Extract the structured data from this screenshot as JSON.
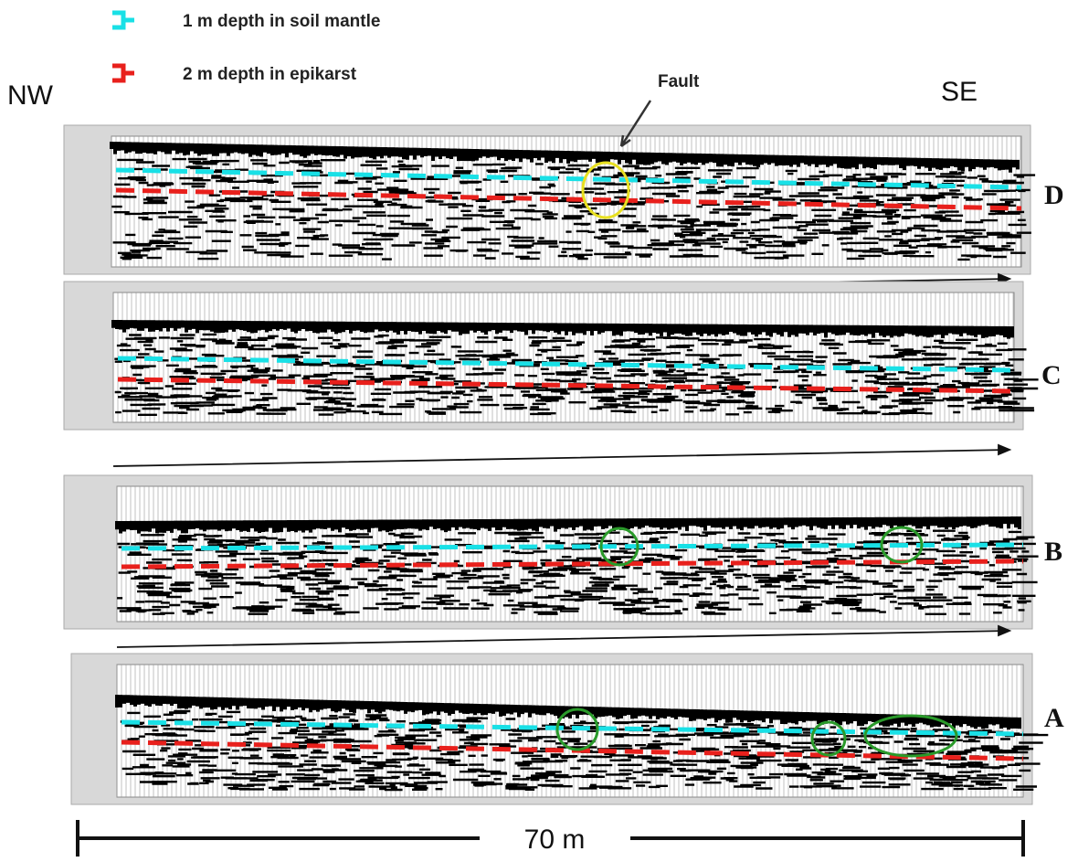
{
  "legend": [
    {
      "label": "1 m depth in soil mantle"
    },
    {
      "label": "2 m depth in epikarst"
    }
  ],
  "directions": {
    "left": "NW",
    "right": "SE"
  },
  "annotation": "Fault",
  "panels": [
    "D",
    "C",
    "B",
    "A"
  ],
  "scale_bar": "70 m"
}
